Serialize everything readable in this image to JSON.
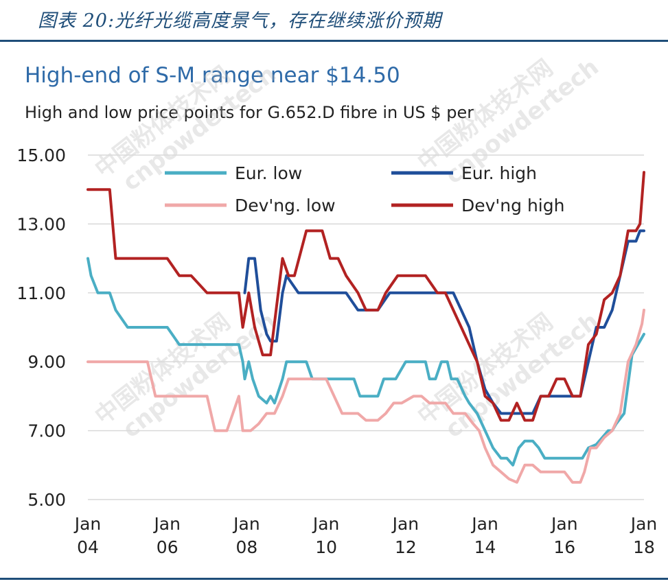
{
  "caption": "图表 20:光纤光缆高度景气，存在继续涨价预期",
  "watermark": {
    "line1": "中国粉体技术网",
    "line2": "cnpowdertech"
  },
  "chart_data": {
    "type": "line",
    "title": "High-end of S-M range near $14.50",
    "subtitle": "High and low price points for G.652.D fibre in US $ per",
    "ylim": [
      5,
      15
    ],
    "yticks": [
      5,
      7,
      9,
      11,
      13,
      15
    ],
    "ytick_labels": [
      "5.00",
      "7.00",
      "9.00",
      "11.00",
      "13.00",
      "15.00"
    ],
    "xlim": [
      2004,
      2018
    ],
    "xticks": [
      2004,
      2006,
      2008,
      2010,
      2012,
      2014,
      2016,
      2018
    ],
    "xtick_labels": [
      [
        "Jan",
        "04"
      ],
      [
        "Jan",
        "06"
      ],
      [
        "Jan",
        "08"
      ],
      [
        "Jan",
        "10"
      ],
      [
        "Jan",
        "12"
      ],
      [
        "Jan",
        "14"
      ],
      [
        "Jan",
        "16"
      ],
      [
        "Jan",
        "18"
      ]
    ],
    "legend_position": "top",
    "series": [
      {
        "name": "Eur. low",
        "color": "#4aaec4",
        "x": [
          2004.0,
          2004.08,
          2004.25,
          2004.55,
          2004.7,
          2005.0,
          2005.5,
          2005.6,
          2006.0,
          2006.3,
          2006.6,
          2007.0,
          2007.5,
          2007.6,
          2007.7,
          2007.8,
          2007.9,
          2007.95,
          2008.05,
          2008.15,
          2008.3,
          2008.5,
          2008.6,
          2008.7,
          2008.9,
          2009.0,
          2009.3,
          2009.5,
          2009.65,
          2009.8,
          2010.0,
          2010.2,
          2010.5,
          2010.7,
          2010.85,
          2011.0,
          2011.3,
          2011.45,
          2011.6,
          2011.75,
          2012.0,
          2012.3,
          2012.5,
          2012.6,
          2012.75,
          2012.9,
          2013.05,
          2013.15,
          2013.3,
          2013.5,
          2013.6,
          2013.8,
          2014.0,
          2014.2,
          2014.4,
          2014.55,
          2014.7,
          2014.85,
          2015.0,
          2015.2,
          2015.35,
          2015.5,
          2015.7,
          2015.85,
          2016.0,
          2016.2,
          2016.3,
          2016.45,
          2016.6,
          2016.8,
          2016.95,
          2017.1,
          2017.2,
          2017.3,
          2017.5,
          2017.7,
          2018.0
        ],
        "y": [
          12,
          11.5,
          11,
          11,
          10.5,
          10,
          10,
          10,
          10,
          9.5,
          9.5,
          9.5,
          9.5,
          9.5,
          9.5,
          9.5,
          9,
          8.5,
          9,
          8.5,
          8,
          7.8,
          8,
          7.8,
          8.5,
          9,
          9,
          9,
          8.5,
          8.5,
          8.5,
          8.5,
          8.5,
          8.5,
          8,
          8,
          8,
          8.5,
          8.5,
          8.5,
          9,
          9,
          9,
          8.5,
          8.5,
          9,
          9,
          8.5,
          8.5,
          8,
          7.8,
          7.5,
          7,
          6.5,
          6.2,
          6.2,
          6,
          6.5,
          6.7,
          6.7,
          6.5,
          6.2,
          6.2,
          6.2,
          6.2,
          6.2,
          6.2,
          6.2,
          6.5,
          6.6,
          6.8,
          7,
          7,
          7.2,
          7.5,
          9.2,
          9.8
        ]
      },
      {
        "name": "Dev'ng. low",
        "color": "#f0a8a8",
        "x": [
          2004.0,
          2005.0,
          2005.5,
          2005.6,
          2005.7,
          2006.0,
          2006.5,
          2007.0,
          2007.2,
          2007.5,
          2007.8,
          2007.9,
          2008.1,
          2008.3,
          2008.5,
          2008.7,
          2008.9,
          2009.05,
          2009.3,
          2009.6,
          2009.8,
          2010.0,
          2010.4,
          2010.8,
          2011.0,
          2011.3,
          2011.5,
          2011.7,
          2011.9,
          2012.2,
          2012.4,
          2012.6,
          2012.8,
          2013.0,
          2013.2,
          2013.5,
          2013.7,
          2013.85,
          2014.0,
          2014.2,
          2014.4,
          2014.6,
          2014.8,
          2015.0,
          2015.2,
          2015.4,
          2015.6,
          2015.8,
          2016.0,
          2016.2,
          2016.4,
          2016.5,
          2016.65,
          2016.8,
          2017.0,
          2017.2,
          2017.4,
          2017.6,
          2017.8,
          2017.95,
          2018.0
        ],
        "y": [
          9,
          9,
          9,
          8.5,
          8,
          8,
          8,
          8,
          7,
          7,
          8,
          7,
          7,
          7.2,
          7.5,
          7.5,
          8,
          8.5,
          8.5,
          8.5,
          8.5,
          8.5,
          7.5,
          7.5,
          7.3,
          7.3,
          7.5,
          7.8,
          7.8,
          8,
          8,
          7.8,
          7.8,
          7.8,
          7.5,
          7.5,
          7.2,
          7,
          6.5,
          6,
          5.8,
          5.6,
          5.5,
          6,
          6,
          5.8,
          5.8,
          5.8,
          5.8,
          5.5,
          5.5,
          5.8,
          6.5,
          6.5,
          6.8,
          7,
          7.5,
          9,
          9.5,
          10.1,
          10.5
        ]
      },
      {
        "name": "Eur. high",
        "color": "#1f4e9a",
        "x": [
          2007.95,
          2008.05,
          2008.2,
          2008.35,
          2008.5,
          2008.6,
          2008.75,
          2008.9,
          2009.0,
          2009.3,
          2009.6,
          2009.9,
          2010.2,
          2010.5,
          2010.8,
          2011.0,
          2011.3,
          2011.6,
          2011.9,
          2012.2,
          2012.5,
          2012.8,
          2013.0,
          2013.2,
          2013.4,
          2013.6,
          2013.8,
          2014.0,
          2014.2,
          2014.4,
          2014.6,
          2014.8,
          2015.0,
          2015.2,
          2015.4,
          2015.6,
          2015.8,
          2016.0,
          2016.2,
          2016.4,
          2016.6,
          2016.8,
          2017.0,
          2017.2,
          2017.4,
          2017.6,
          2017.8,
          2017.9,
          2018.0
        ],
        "y": [
          11,
          12,
          12,
          10.5,
          9.8,
          9.6,
          9.6,
          11,
          11.5,
          11,
          11,
          11,
          11,
          11,
          10.5,
          10.5,
          10.5,
          11,
          11,
          11,
          11,
          11,
          11,
          11,
          10.5,
          10,
          9,
          8.2,
          7.8,
          7.5,
          7.5,
          7.5,
          7.5,
          7.5,
          8,
          8,
          8,
          8,
          8,
          8,
          9,
          10,
          10,
          10.5,
          11.5,
          12.5,
          12.5,
          12.8,
          12.8
        ]
      },
      {
        "name": "Dev'ng high",
        "color": "#b22222",
        "x": [
          2004.0,
          2004.55,
          2004.7,
          2005.0,
          2005.5,
          2006.0,
          2006.3,
          2006.6,
          2007.0,
          2007.5,
          2007.8,
          2007.9,
          2008.05,
          2008.2,
          2008.4,
          2008.6,
          2008.9,
          2009.05,
          2009.2,
          2009.5,
          2009.7,
          2009.9,
          2010.1,
          2010.3,
          2010.5,
          2010.8,
          2011.0,
          2011.3,
          2011.5,
          2011.8,
          2012.0,
          2012.3,
          2012.5,
          2012.8,
          2013.0,
          2013.2,
          2013.4,
          2013.6,
          2013.8,
          2014.0,
          2014.2,
          2014.4,
          2014.6,
          2014.8,
          2015.0,
          2015.2,
          2015.4,
          2015.6,
          2015.8,
          2016.0,
          2016.2,
          2016.4,
          2016.6,
          2016.8,
          2017.0,
          2017.2,
          2017.4,
          2017.6,
          2017.8,
          2017.9,
          2018.0
        ],
        "y": [
          14,
          14,
          12,
          12,
          12,
          12,
          11.5,
          11.5,
          11,
          11,
          11,
          10,
          11,
          10,
          9.2,
          9.2,
          12,
          11.5,
          11.5,
          12.8,
          12.8,
          12.8,
          12,
          12,
          11.5,
          11,
          10.5,
          10.5,
          11,
          11.5,
          11.5,
          11.5,
          11.5,
          11,
          11,
          10.5,
          10,
          9.5,
          9,
          8,
          7.8,
          7.3,
          7.3,
          7.8,
          7.3,
          7.3,
          8,
          8,
          8.5,
          8.5,
          8,
          8,
          9.5,
          9.8,
          10.8,
          11,
          11.5,
          12.8,
          12.8,
          13,
          14.5
        ]
      }
    ]
  }
}
